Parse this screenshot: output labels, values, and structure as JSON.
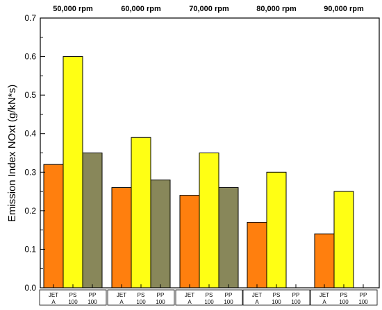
{
  "chart_data": {
    "type": "bar",
    "ylabel": "Emission Index NOxt (g/kN*s)",
    "ylim": [
      0,
      0.7
    ],
    "yticks": [
      "0.0",
      "0.1",
      "0.2",
      "0.3",
      "0.4",
      "0.5",
      "0.6",
      "0.7"
    ],
    "grid": false,
    "groups": [
      "50,000 rpm",
      "60,000 rpm",
      "70,000 rpm",
      "80,000 rpm",
      "90,000 rpm"
    ],
    "fuel_labels": [
      {
        "top": "JET",
        "bottom": "A"
      },
      {
        "top": "PS",
        "bottom": "100"
      },
      {
        "top": "PP",
        "bottom": "100"
      }
    ],
    "series": [
      {
        "values": [
          0.32,
          0.26,
          0.24,
          0.17,
          0.14
        ],
        "color": "#ff7f0e"
      },
      {
        "values": [
          0.6,
          0.39,
          0.35,
          0.3,
          0.25
        ],
        "color": "#ffff14"
      },
      {
        "values": [
          0.35,
          0.28,
          0.26,
          null,
          null
        ],
        "color": "#88875a"
      }
    ]
  }
}
